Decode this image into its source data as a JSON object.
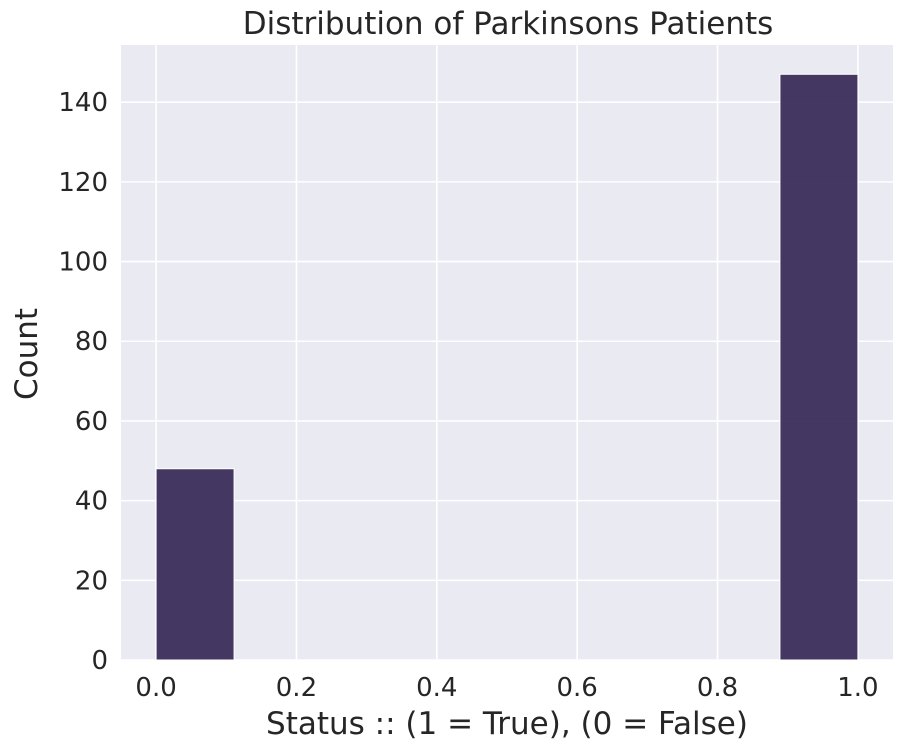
{
  "chart_data": {
    "type": "bar",
    "title": "Distribution of Parkinsons Patients",
    "xlabel": "Status :: (1 = True), (0 = False)",
    "ylabel": "Count",
    "xlim": [
      -0.05,
      1.05
    ],
    "ylim": [
      0,
      154.35
    ],
    "xticks": [
      0.0,
      0.2,
      0.4,
      0.6,
      0.8,
      1.0
    ],
    "xtick_labels": [
      "0.0",
      "0.2",
      "0.4",
      "0.6",
      "0.8",
      "1.0"
    ],
    "yticks": [
      0,
      20,
      40,
      60,
      80,
      100,
      120,
      140
    ],
    "ytick_labels": [
      "0",
      "20",
      "40",
      "60",
      "80",
      "100",
      "120",
      "140"
    ],
    "grid": true,
    "bins": [
      {
        "x0": 0.0,
        "x1": 0.1111,
        "value": 48
      },
      {
        "x0": 0.8889,
        "x1": 1.0,
        "value": 147
      }
    ],
    "colors": {
      "bar": "#3b2d5a",
      "plot_bg": "#eaeaf2",
      "grid": "#ffffff",
      "text": "#262626"
    }
  }
}
